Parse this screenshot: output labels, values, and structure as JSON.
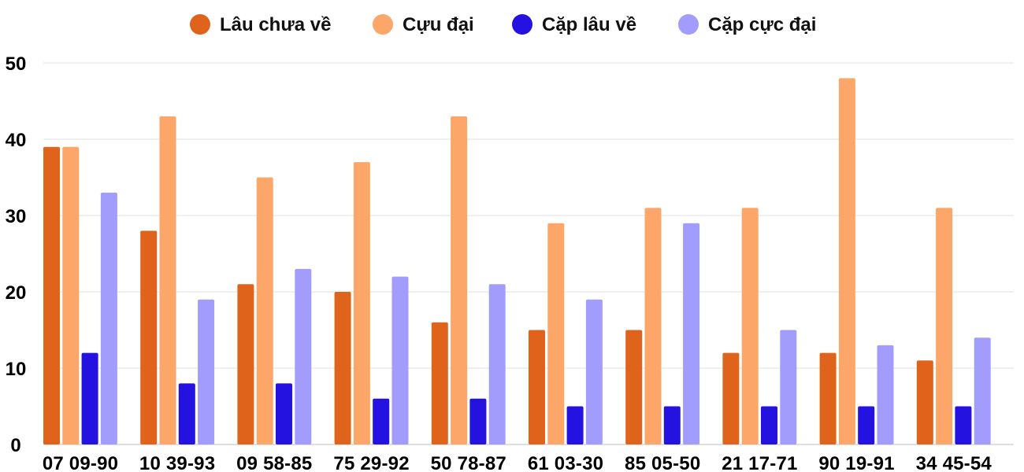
{
  "chart_data": {
    "type": "bar",
    "categories": [
      "07 09-90",
      "10 39-93",
      "09 58-85",
      "75 29-92",
      "50 78-87",
      "61 03-30",
      "85 05-50",
      "21 17-71",
      "90 19-91",
      "34 45-54"
    ],
    "series": [
      {
        "name": "Lâu chưa về",
        "color": "#E0631C",
        "values": [
          39,
          28,
          21,
          20,
          16,
          15,
          15,
          12,
          12,
          11
        ]
      },
      {
        "name": "Cựu đại",
        "color": "#FCA66A",
        "values": [
          39,
          43,
          35,
          37,
          43,
          29,
          31,
          31,
          48,
          31
        ]
      },
      {
        "name": "Cặp lâu về",
        "color": "#2312E0",
        "values": [
          12,
          8,
          8,
          6,
          6,
          5,
          5,
          5,
          5,
          5
        ]
      },
      {
        "name": "Cặp cực đại",
        "color": "#A29CFC",
        "values": [
          33,
          19,
          23,
          22,
          21,
          19,
          29,
          15,
          13,
          14
        ]
      }
    ],
    "ylim": [
      0,
      50
    ],
    "yticks": [
      0,
      10,
      20,
      30,
      40,
      50
    ],
    "grid": true,
    "legend_position": "top-center",
    "title": "",
    "xlabel": "",
    "ylabel": ""
  }
}
